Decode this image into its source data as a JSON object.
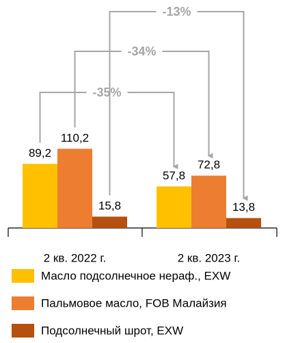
{
  "chart_data": {
    "type": "bar",
    "categories": [
      "2 кв. 2022 г.",
      "2 кв. 2023 г."
    ],
    "series": [
      {
        "name": "Масло подсолнечное нераф., EXW",
        "color": "#ffc000",
        "values": [
          89.2,
          57.8
        ],
        "value_labels": [
          "89,2",
          "57,8"
        ]
      },
      {
        "name": "Пальмовое масло, FOB Малайзия",
        "color": "#ed7d31",
        "values": [
          110.2,
          72.8
        ],
        "value_labels": [
          "110,2",
          "72,8"
        ]
      },
      {
        "name": "Подсолнечный шрот, EXW",
        "color": "#b5500e",
        "values": [
          15.8,
          13.8
        ],
        "value_labels": [
          "15,8",
          "13,8"
        ]
      }
    ],
    "annotations": [
      "-35%",
      "-34%",
      "-13%"
    ],
    "legend": "bottom"
  }
}
